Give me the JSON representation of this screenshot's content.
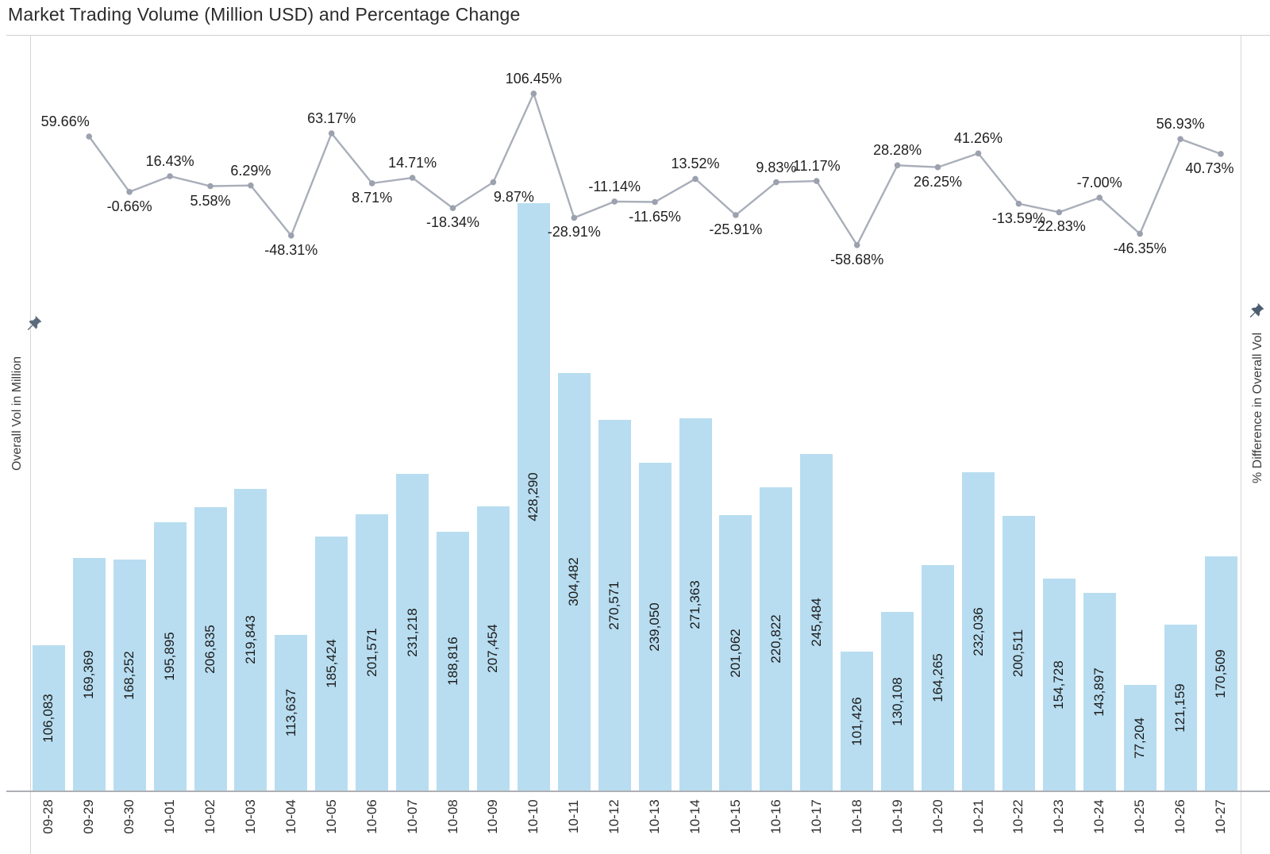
{
  "title": "Market Trading Volume (Million USD) and Percentage Change",
  "axes": {
    "left": {
      "title": "Overall Vol in Million",
      "icon": "pin-icon"
    },
    "right": {
      "title": "% Difference in Overall Vol",
      "icon": "pin-icon"
    }
  },
  "colors": {
    "bar": "#b8ddf0",
    "line": "#a9aeba",
    "marker": "#9ba1ae",
    "text": "#1f1f1f",
    "border": "#d6d6d6",
    "axis_line": "#adb0b6",
    "pin": "#5b6b7c"
  },
  "chart_data": {
    "type": "combo",
    "title": "Market Trading Volume (Million USD) and Percentage Change",
    "xlabel": "",
    "ylabel_left": "Overall Vol in Million",
    "ylabel_right": "% Difference in Overall Vol",
    "categories": [
      "09-28",
      "09-29",
      "09-30",
      "10-01",
      "10-02",
      "10-03",
      "10-04",
      "10-05",
      "10-06",
      "10-07",
      "10-08",
      "10-09",
      "10-10",
      "10-11",
      "10-12",
      "10-13",
      "10-14",
      "10-15",
      "10-16",
      "10-17",
      "10-18",
      "10-19",
      "10-20",
      "10-21",
      "10-22",
      "10-23",
      "10-24",
      "10-25",
      "10-26",
      "10-27"
    ],
    "series": [
      {
        "name": "Overall Vol in Million",
        "type": "bar",
        "color": "#b8ddf0",
        "label_format": "#,##0",
        "values": [
          106083,
          169369,
          168252,
          195895,
          206835,
          219843,
          113637,
          185424,
          201571,
          231218,
          188816,
          207454,
          428290,
          304482,
          270571,
          239050,
          271363,
          201062,
          220822,
          245484,
          101426,
          130108,
          164265,
          232036,
          200511,
          154728,
          143897,
          77204,
          121159,
          170509
        ]
      },
      {
        "name": "% Difference in Overall Vol",
        "type": "line",
        "color": "#a9aeba",
        "label_format": "0.00%",
        "x": [
          "09-29",
          "09-30",
          "10-01",
          "10-02",
          "10-03",
          "10-04",
          "10-05",
          "10-06",
          "10-07",
          "10-08",
          "10-09",
          "10-10",
          "10-11",
          "10-12",
          "10-13",
          "10-14",
          "10-15",
          "10-16",
          "10-17",
          "10-18",
          "10-19",
          "10-20",
          "10-21",
          "10-22",
          "10-23",
          "10-24",
          "10-25",
          "10-26",
          "10-27"
        ],
        "values": [
          59.66,
          -0.66,
          16.43,
          5.58,
          6.29,
          -48.31,
          63.17,
          8.71,
          14.71,
          -18.34,
          9.87,
          106.45,
          -28.91,
          -11.14,
          -11.65,
          13.52,
          -25.91,
          9.83,
          11.17,
          -58.68,
          28.28,
          26.25,
          41.26,
          -13.59,
          -22.83,
          -7.0,
          -46.35,
          56.93,
          40.73
        ]
      }
    ],
    "ylim_left": [
      0,
      450000
    ],
    "ylim_right": [
      -80,
      120
    ],
    "grid": false,
    "legend": false,
    "value_labels": true,
    "axis_tick_numbers_visible": false
  }
}
